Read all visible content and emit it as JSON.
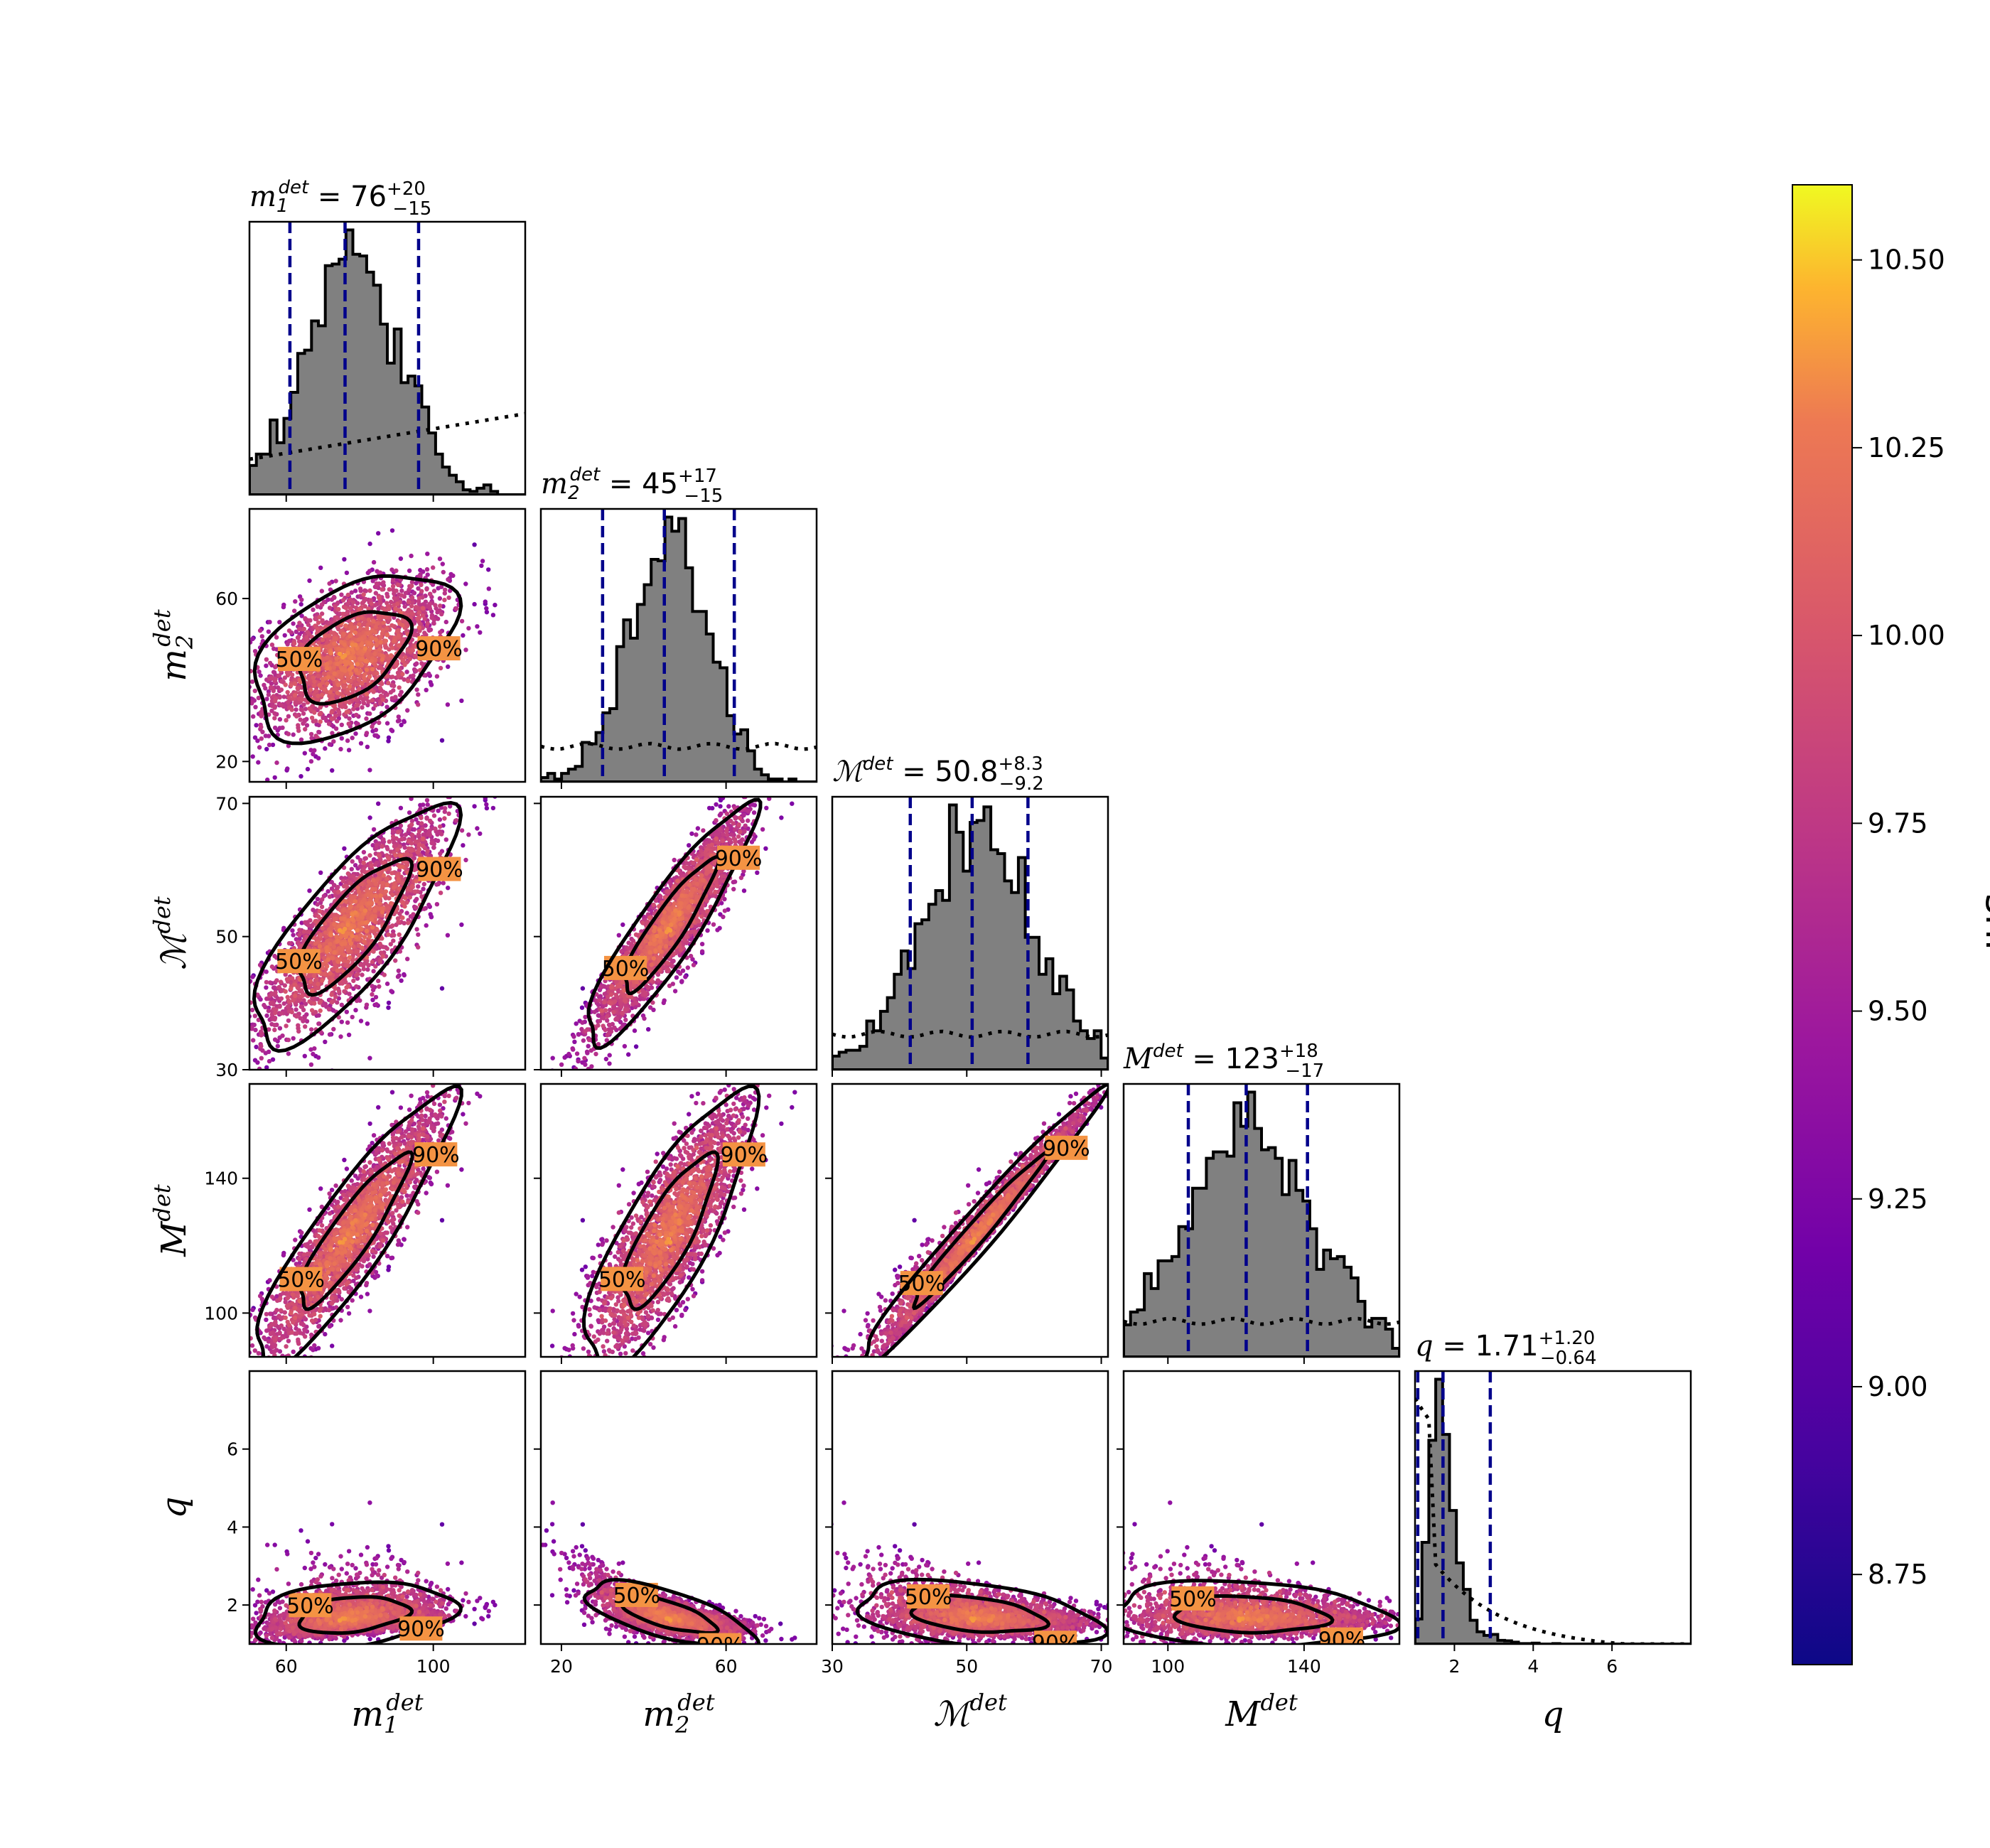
{
  "chart_data": {
    "type": "corner",
    "parameters": [
      {
        "key": "m1",
        "label": "m",
        "sub": "1",
        "sup": "det",
        "title_value": "76",
        "title_plus": "+20",
        "title_minus": "−15",
        "range": [
          50,
          125
        ],
        "ticks": [
          60,
          100
        ],
        "median": 76,
        "q_low": 61,
        "q_high": 96
      },
      {
        "key": "m2",
        "label": "m",
        "sub": "2",
        "sup": "det",
        "title_value": "45",
        "title_plus": "+17",
        "title_minus": "−15",
        "range": [
          15,
          82
        ],
        "ticks": [
          20,
          60
        ],
        "median": 45,
        "q_low": 30,
        "q_high": 62
      },
      {
        "key": "mc",
        "label": "ℳ",
        "sub": "",
        "sup": "det",
        "title_value": "50.8",
        "title_plus": "+8.3",
        "title_minus": "−9.2",
        "range": [
          30,
          71
        ],
        "ticks": [
          30,
          50,
          70
        ],
        "median": 50.8,
        "q_low": 41.6,
        "q_high": 59.1
      },
      {
        "key": "mt",
        "label": "M",
        "sub": "",
        "sup": "det",
        "title_value": "123",
        "title_plus": "+18",
        "title_minus": "−17",
        "range": [
          87,
          168
        ],
        "ticks": [
          100,
          140
        ],
        "median": 123,
        "q_low": 106,
        "q_high": 141
      },
      {
        "key": "q",
        "label": "q",
        "sub": "",
        "sup": "",
        "title_value": "1.71",
        "title_plus": "+1.20",
        "title_minus": "−0.64",
        "range": [
          1,
          8
        ],
        "ticks": [
          2,
          4,
          6
        ],
        "median": 1.71,
        "q_low": 1.07,
        "q_high": 2.91
      }
    ],
    "y_ticks": {
      "m2": [
        20,
        60
      ],
      "mc": [
        30,
        50,
        70
      ],
      "mt": [
        100,
        140
      ],
      "q": [
        2,
        4,
        6
      ]
    },
    "contour_levels": [
      "50%",
      "90%"
    ],
    "colorbar": {
      "label": "snr",
      "range": [
        8.63,
        10.6
      ],
      "ticks": [
        "8.75",
        "9.00",
        "9.25",
        "9.50",
        "9.75",
        "10.00",
        "10.25",
        "10.50"
      ],
      "colormap": "plasma"
    },
    "prior_histograms": "dotted",
    "posterior_histogram_color": "#808080",
    "quantile_line_color": "#00008b",
    "samples": 2500
  }
}
